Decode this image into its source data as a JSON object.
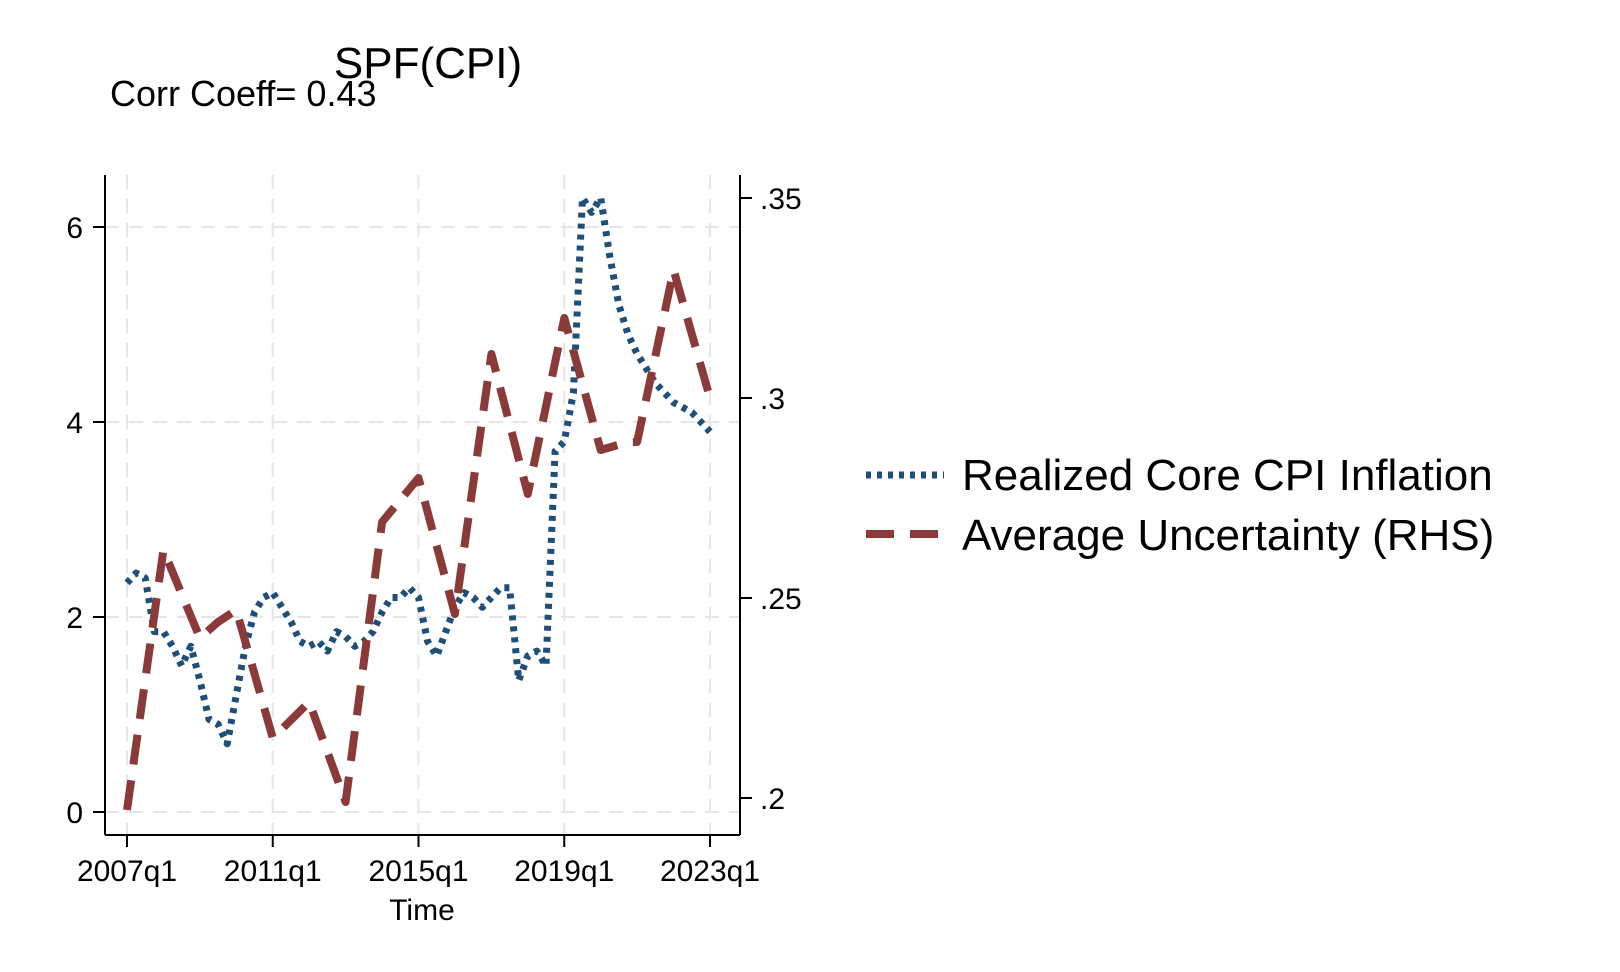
{
  "chart_data": {
    "type": "line",
    "title": "SPF(CPI)",
    "subtitle": "Corr Coeff= 0.43",
    "xlabel": "Time",
    "x_ticks": [
      "2007q1",
      "2011q1",
      "2015q1",
      "2019q1",
      "2023q1"
    ],
    "xlim": [
      2007.0,
      2023.0
    ],
    "y_left": {
      "ticks": [
        "0",
        "2",
        "4",
        "6"
      ],
      "ylim": [
        0,
        6.4
      ]
    },
    "y_right": {
      "ticks": [
        ".2",
        ".25",
        ".3",
        ".35"
      ],
      "ylim": [
        0.195,
        0.355
      ]
    },
    "grid": true,
    "legend_position": "right",
    "series": [
      {
        "name": "Realized Core CPI Inflation",
        "axis": "left",
        "color": "#1f4e79",
        "style": "dotted",
        "x": [
          2007.0,
          2007.25,
          2007.5,
          2007.75,
          2008.0,
          2008.25,
          2008.5,
          2008.75,
          2009.0,
          2009.25,
          2009.5,
          2009.75,
          2010.0,
          2010.25,
          2010.5,
          2010.75,
          2011.0,
          2011.25,
          2011.5,
          2011.75,
          2012.0,
          2012.25,
          2012.5,
          2012.75,
          2013.0,
          2013.25,
          2013.5,
          2013.75,
          2014.0,
          2014.25,
          2014.5,
          2014.75,
          2015.0,
          2015.25,
          2015.5,
          2015.75,
          2016.0,
          2016.25,
          2016.5,
          2016.75,
          2017.0,
          2017.25,
          2017.5,
          2017.75,
          2018.0,
          2018.25,
          2018.5,
          2018.75,
          2019.0,
          2019.25,
          2019.5,
          2019.75,
          2020.0,
          2020.25,
          2020.5,
          2020.75,
          2021.0,
          2021.25,
          2021.5,
          2021.75,
          2022.0,
          2022.25,
          2022.5,
          2022.75,
          2023.0
        ],
        "values": [
          2.35,
          2.45,
          2.4,
          1.85,
          1.85,
          1.7,
          1.5,
          1.7,
          1.35,
          0.95,
          0.9,
          0.7,
          1.2,
          1.7,
          2.05,
          2.2,
          2.25,
          2.1,
          1.95,
          1.75,
          1.7,
          1.75,
          1.65,
          1.85,
          1.8,
          1.7,
          1.75,
          1.85,
          2.05,
          2.2,
          2.2,
          2.3,
          2.2,
          1.75,
          1.6,
          1.85,
          2.1,
          2.25,
          2.2,
          2.1,
          2.2,
          2.3,
          2.3,
          1.35,
          1.6,
          1.65,
          1.5,
          3.7,
          3.8,
          4.3,
          6.3,
          6.15,
          6.3,
          5.7,
          5.2,
          4.9,
          4.7,
          4.55,
          4.4,
          4.3,
          4.2,
          4.15,
          4.1,
          4.0,
          3.9
        ]
      },
      {
        "name": "Average Uncertainty (RHS)",
        "axis": "right",
        "color": "#8b3a3a",
        "style": "dashed",
        "x": [
          2007.0,
          2008.0,
          2009.0,
          2009.5,
          2010.0,
          2011.0,
          2012.0,
          2013.0,
          2014.0,
          2015.0,
          2016.0,
          2017.0,
          2018.0,
          2019.0,
          2020.0,
          2020.75,
          2021.0,
          2022.0,
          2023.0
        ],
        "values": [
          0.197,
          0.262,
          0.24,
          0.244,
          0.247,
          0.215,
          0.224,
          0.199,
          0.269,
          0.28,
          0.246,
          0.311,
          0.276,
          0.32,
          0.287,
          0.289,
          0.289,
          0.332,
          0.3
        ]
      }
    ]
  }
}
